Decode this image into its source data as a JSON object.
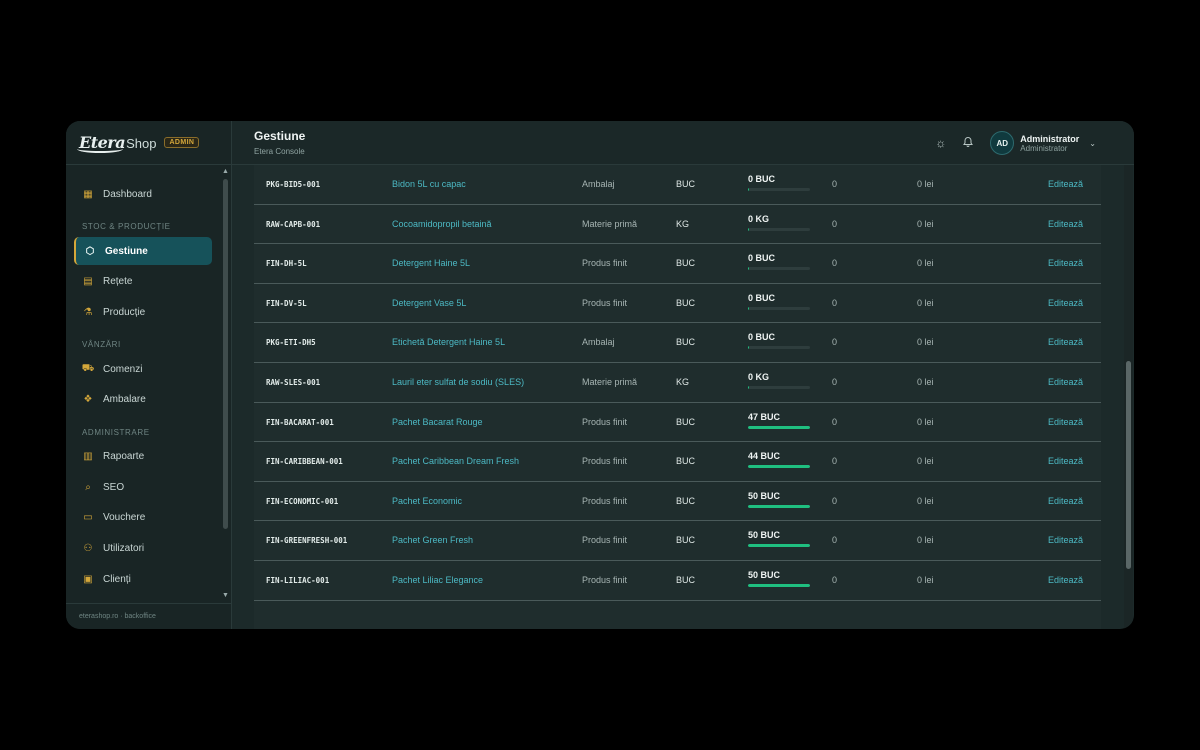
{
  "brand": {
    "logo_main": "Etera",
    "logo_suffix": "Shop",
    "badge": "ADMIN"
  },
  "sidebar": {
    "items": [
      {
        "label": "Dashboard",
        "icon": "grid-icon"
      },
      {
        "section": "STOC & PRODUCȚIE"
      },
      {
        "label": "Gestiune",
        "icon": "cube-icon",
        "active": true
      },
      {
        "label": "Rețete",
        "icon": "document-icon"
      },
      {
        "label": "Producție",
        "icon": "flask-icon"
      },
      {
        "section": "VÂNZĂRI"
      },
      {
        "label": "Comenzi",
        "icon": "cart-icon"
      },
      {
        "label": "Ambalare",
        "icon": "boxes-icon"
      },
      {
        "section": "ADMINISTRARE"
      },
      {
        "label": "Rapoarte",
        "icon": "chart-icon"
      },
      {
        "label": "SEO",
        "icon": "search-icon"
      },
      {
        "label": "Vouchere",
        "icon": "ticket-icon"
      },
      {
        "label": "Utilizatori",
        "icon": "users-icon"
      },
      {
        "label": "Clienți",
        "icon": "contact-icon"
      }
    ],
    "footer": "eterashop.ro · backoffice"
  },
  "header": {
    "title": "Gestiune",
    "subtitle": "Etera Console",
    "user_initials": "AD",
    "user_name": "Administrator",
    "user_role": "Administrator"
  },
  "colors": {
    "accent": "#16525a",
    "link": "#4cb9c4",
    "stock_bar": "#1fbf80",
    "badge": "#d4a73a"
  },
  "table": {
    "rows": [
      {
        "sku": "PKG-BID5-001",
        "name": "Bidon 5L cu capac",
        "type": "Ambalaj",
        "unit": "BUC",
        "stock": "0 BUC",
        "stock_fill": 0.02,
        "reserved": "0",
        "value": "0 lei",
        "action": "Editează"
      },
      {
        "sku": "RAW-CAPB-001",
        "name": "Cocoamidopropil betaină",
        "type": "Materie primă",
        "unit": "KG",
        "stock": "0 KG",
        "stock_fill": 0.02,
        "reserved": "0",
        "value": "0 lei",
        "action": "Editează"
      },
      {
        "sku": "FIN-DH-5L",
        "name": "Detergent Haine 5L",
        "type": "Produs finit",
        "unit": "BUC",
        "stock": "0 BUC",
        "stock_fill": 0.02,
        "reserved": "0",
        "value": "0 lei",
        "action": "Editează"
      },
      {
        "sku": "FIN-DV-5L",
        "name": "Detergent Vase 5L",
        "type": "Produs finit",
        "unit": "BUC",
        "stock": "0 BUC",
        "stock_fill": 0.02,
        "reserved": "0",
        "value": "0 lei",
        "action": "Editează"
      },
      {
        "sku": "PKG-ETI-DH5",
        "name": "Etichetă Detergent Haine 5L",
        "type": "Ambalaj",
        "unit": "BUC",
        "stock": "0 BUC",
        "stock_fill": 0.02,
        "reserved": "0",
        "value": "0 lei",
        "action": "Editează"
      },
      {
        "sku": "RAW-SLES-001",
        "name": "Lauril eter sulfat de sodiu (SLES)",
        "type": "Materie primă",
        "unit": "KG",
        "stock": "0 KG",
        "stock_fill": 0.02,
        "reserved": "0",
        "value": "0 lei",
        "action": "Editează"
      },
      {
        "sku": "FIN-BACARAT-001",
        "name": "Pachet Bacarat Rouge",
        "type": "Produs finit",
        "unit": "BUC",
        "stock": "47 BUC",
        "stock_fill": 1,
        "reserved": "0",
        "value": "0 lei",
        "action": "Editează"
      },
      {
        "sku": "FIN-CARIBBEAN-001",
        "name": "Pachet Caribbean Dream Fresh",
        "type": "Produs finit",
        "unit": "BUC",
        "stock": "44 BUC",
        "stock_fill": 1,
        "reserved": "0",
        "value": "0 lei",
        "action": "Editează"
      },
      {
        "sku": "FIN-ECONOMIC-001",
        "name": "Pachet Economic",
        "type": "Produs finit",
        "unit": "BUC",
        "stock": "50 BUC",
        "stock_fill": 1,
        "reserved": "0",
        "value": "0 lei",
        "action": "Editează"
      },
      {
        "sku": "FIN-GREENFRESH-001",
        "name": "Pachet Green Fresh",
        "type": "Produs finit",
        "unit": "BUC",
        "stock": "50 BUC",
        "stock_fill": 1,
        "reserved": "0",
        "value": "0 lei",
        "action": "Editează"
      },
      {
        "sku": "FIN-LILIAC-001",
        "name": "Pachet Liliac Elegance",
        "type": "Produs finit",
        "unit": "BUC",
        "stock": "50 BUC",
        "stock_fill": 1,
        "reserved": "0",
        "value": "0 lei",
        "action": "Editează"
      }
    ]
  }
}
